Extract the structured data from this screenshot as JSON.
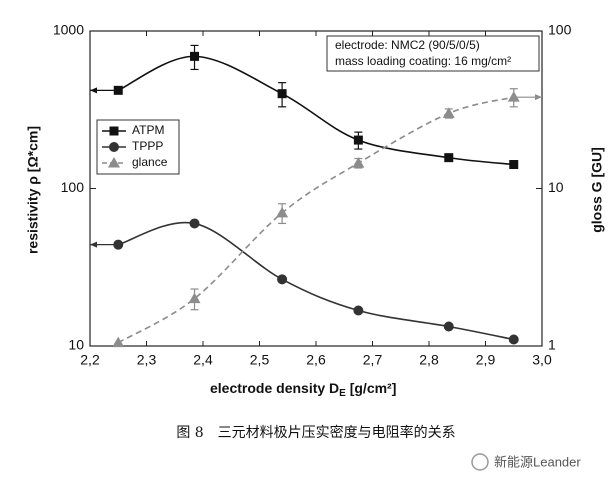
{
  "chart_data": {
    "type": "line",
    "log_scale": true,
    "annotations": [
      "electrode: NMC2 (90/5/0/5)",
      "mass loading coating: 16 mg/cm²"
    ],
    "xlabel": [
      "electrode density D",
      "E",
      " [g/cm²]"
    ],
    "ylabel": "resistivity ρ [Ω*cm]",
    "y2label": "gloss G [GU]",
    "x": [
      2.25,
      2.385,
      2.54,
      2.675,
      2.835,
      2.95
    ],
    "series": [
      {
        "name": "ATPM",
        "color": "#111111",
        "marker": "square",
        "values": [
          420,
          690,
          400,
          203,
          157,
          142
        ],
        "errors": [
          null,
          120,
          70,
          25,
          null,
          null
        ]
      },
      {
        "name": "TPPP",
        "color": "#333333",
        "marker": "circle",
        "values": [
          44,
          60,
          26.5,
          16.8,
          13.3,
          11
        ],
        "errors": [
          null,
          null,
          null,
          null,
          null,
          null
        ]
      },
      {
        "name": "glance",
        "color": "#8c8c8c",
        "marker": "triangle",
        "dash": true,
        "axis": "y2",
        "values": [
          1.05,
          2,
          7,
          14.5,
          30,
          38
        ],
        "errors": [
          null,
          0.3,
          1,
          1,
          2,
          5
        ]
      }
    ],
    "xlim": [
      2.2,
      3.0
    ],
    "xticks": [
      {
        "value": 2.2,
        "label": "2,2"
      },
      {
        "value": 2.3,
        "label": "2,3"
      },
      {
        "value": 2.4,
        "label": "2,4"
      },
      {
        "value": 2.5,
        "label": "2,5"
      },
      {
        "value": 2.6,
        "label": "2,6"
      },
      {
        "value": 2.7,
        "label": "2,7"
      },
      {
        "value": 2.8,
        "label": "2,8"
      },
      {
        "value": 2.9,
        "label": "2,9"
      },
      {
        "value": 3.0,
        "label": "3,0"
      }
    ],
    "ylim": [
      10,
      1000
    ],
    "yticks": [
      10,
      100,
      1000
    ],
    "y2lim": [
      1,
      100
    ],
    "y2ticks": [
      1,
      10,
      100
    ],
    "grid": false,
    "legend": "upper left"
  },
  "caption": "图 8　三元材料极片压实密度与电阻率的关系",
  "watermark": "新能源Leander"
}
